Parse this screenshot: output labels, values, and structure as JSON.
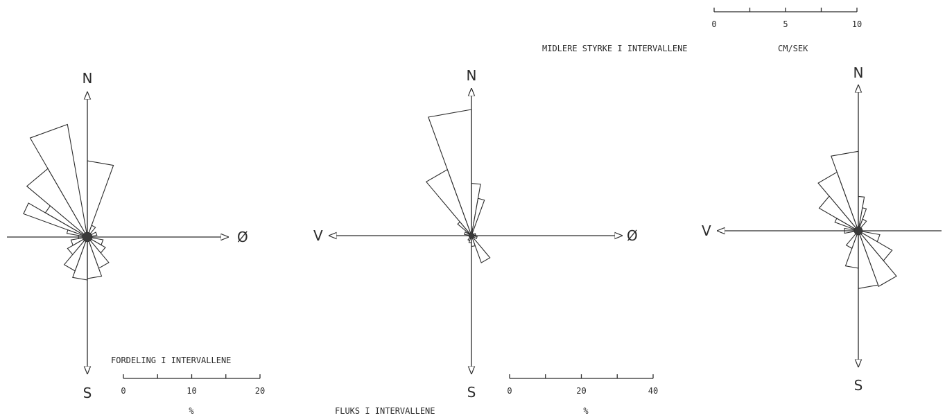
{
  "chart_data": [
    {
      "type": "rose",
      "panel": "fordeling",
      "directions": {
        "north": "N",
        "south": "S",
        "east": "Ø",
        "west": ""
      },
      "sectors_deg": [
        {
          "from": 0,
          "to": 20,
          "value": 11.0
        },
        {
          "from": 330,
          "to": 350,
          "value": 16.5
        },
        {
          "from": 310,
          "to": 330,
          "value": 11.4
        },
        {
          "from": 300,
          "to": 310,
          "value": 7.0
        },
        {
          "from": 290,
          "to": 300,
          "value": 9.8
        },
        {
          "from": 280,
          "to": 290,
          "value": 3.0
        },
        {
          "from": 20,
          "to": 40,
          "value": 1.8
        },
        {
          "from": 60,
          "to": 80,
          "value": 1.4
        },
        {
          "from": 100,
          "to": 120,
          "value": 2.3
        },
        {
          "from": 120,
          "to": 140,
          "value": 3.0
        },
        {
          "from": 140,
          "to": 160,
          "value": 4.8
        },
        {
          "from": 160,
          "to": 180,
          "value": 6.0
        },
        {
          "from": 180,
          "to": 200,
          "value": 6.2
        },
        {
          "from": 200,
          "to": 220,
          "value": 5.2
        },
        {
          "from": 220,
          "to": 240,
          "value": 3.3
        },
        {
          "from": 240,
          "to": 260,
          "value": 2.4
        },
        {
          "from": 260,
          "to": 280,
          "value": 1.3
        }
      ],
      "scale": {
        "title": "FORDELING I INTERVALLENE",
        "unit": "%",
        "ticks": [
          "0",
          "10",
          "20"
        ],
        "max": 20
      }
    },
    {
      "type": "rose",
      "panel": "fluks",
      "directions": {
        "north": "N",
        "south": "S",
        "east": "Ø",
        "west": "V"
      },
      "sectors_deg": [
        {
          "from": 340,
          "to": 360,
          "value": 35.0
        },
        {
          "from": 320,
          "to": 340,
          "value": 19.5
        },
        {
          "from": 310,
          "to": 320,
          "value": 5.0
        },
        {
          "from": 0,
          "to": 10,
          "value": 14.5
        },
        {
          "from": 10,
          "to": 20,
          "value": 10.5
        },
        {
          "from": 140,
          "to": 160,
          "value": 8.0
        },
        {
          "from": 160,
          "to": 180,
          "value": 3.0
        },
        {
          "from": 180,
          "to": 200,
          "value": 2.0
        },
        {
          "from": 200,
          "to": 220,
          "value": 1.5
        },
        {
          "from": 280,
          "to": 300,
          "value": 2.0
        },
        {
          "from": 60,
          "to": 80,
          "value": 1.2
        },
        {
          "from": 100,
          "to": 120,
          "value": 1.6
        }
      ],
      "scale": {
        "title": "FLUKS I INTERVALLENE",
        "unit": "%",
        "ticks": [
          "0",
          "20",
          "40"
        ],
        "max": 40
      }
    },
    {
      "type": "rose",
      "panel": "midlere-styrke",
      "directions": {
        "north": "N",
        "south": "S",
        "east": "",
        "west": "V"
      },
      "sectors_deg": [
        {
          "from": 340,
          "to": 360,
          "value": 5.1
        },
        {
          "from": 320,
          "to": 340,
          "value": 4.0
        },
        {
          "from": 300,
          "to": 320,
          "value": 2.9
        },
        {
          "from": 290,
          "to": 300,
          "value": 1.6
        },
        {
          "from": 0,
          "to": 10,
          "value": 2.2
        },
        {
          "from": 10,
          "to": 20,
          "value": 1.5
        },
        {
          "from": 20,
          "to": 40,
          "value": 0.8
        },
        {
          "from": 100,
          "to": 120,
          "value": 1.4
        },
        {
          "from": 120,
          "to": 140,
          "value": 2.5
        },
        {
          "from": 140,
          "to": 160,
          "value": 3.8
        },
        {
          "from": 160,
          "to": 180,
          "value": 3.7
        },
        {
          "from": 180,
          "to": 200,
          "value": 2.4
        },
        {
          "from": 200,
          "to": 220,
          "value": 1.2
        },
        {
          "from": 260,
          "to": 280,
          "value": 0.9
        }
      ],
      "scale": {
        "title": "MIDLERE STYRKE I INTERVALLENE",
        "unit": "CM/SEK",
        "ticks": [
          "0",
          "5",
          "10"
        ],
        "max": 10
      }
    }
  ]
}
